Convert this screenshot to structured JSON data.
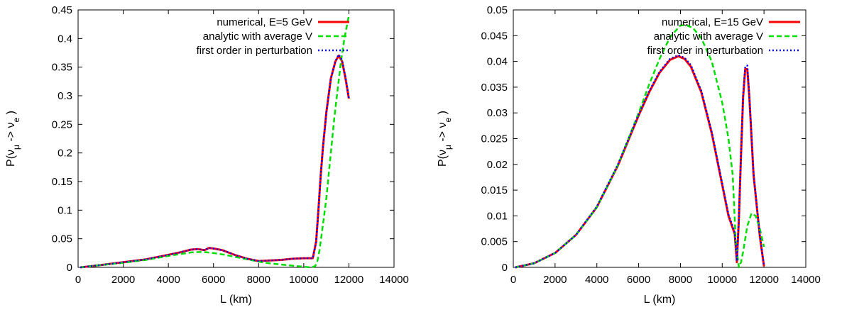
{
  "chart_data": [
    {
      "type": "line",
      "xlabel": "L (km)",
      "ylabel": "P(ν_μ -> ν_e )",
      "xlim": [
        0,
        14000
      ],
      "ylim": [
        0,
        0.45
      ],
      "xticks": [
        "0",
        "2000",
        "4000",
        "6000",
        "8000",
        "10000",
        "12000",
        "14000"
      ],
      "yticks": [
        "0",
        "0.05",
        "0.1",
        "0.15",
        "0.2",
        "0.25",
        "0.3",
        "0.35",
        "0.4",
        "0.45"
      ],
      "legend_position": "top-right",
      "grid": false,
      "series": [
        {
          "name": "numerical, E=5 GeV",
          "color": "#ff0000",
          "style": "solid",
          "x": [
            100,
            1000,
            2000,
            3000,
            4000,
            4500,
            5000,
            5300,
            5600,
            5800,
            6000,
            6400,
            7000,
            7500,
            8000,
            8500,
            9000,
            9500,
            10000,
            10400,
            10550,
            10650,
            10750,
            10850,
            11000,
            11200,
            11400,
            11550,
            11700,
            11850,
            12000
          ],
          "values": [
            0.0,
            0.004,
            0.009,
            0.014,
            0.022,
            0.026,
            0.031,
            0.032,
            0.03,
            0.034,
            0.033,
            0.03,
            0.021,
            0.015,
            0.011,
            0.012,
            0.013,
            0.015,
            0.016,
            0.016,
            0.045,
            0.1,
            0.16,
            0.21,
            0.27,
            0.33,
            0.36,
            0.37,
            0.36,
            0.33,
            0.295
          ]
        },
        {
          "name": "analytic with average V",
          "color": "#00dd00",
          "style": "dashed",
          "x": [
            100,
            1000,
            2000,
            3000,
            4000,
            4500,
            5000,
            5500,
            6000,
            6500,
            7000,
            7500,
            8000,
            8500,
            9000,
            9500,
            10000,
            10300,
            10500,
            10600,
            10700,
            10800,
            10900,
            11000,
            11100,
            11200,
            11350,
            11500,
            11650,
            11800,
            11950,
            12000
          ],
          "values": [
            0.0,
            0.004,
            0.008,
            0.013,
            0.02,
            0.023,
            0.026,
            0.027,
            0.025,
            0.022,
            0.018,
            0.014,
            0.01,
            0.007,
            0.005,
            0.003,
            0.001,
            0.0,
            0.002,
            0.01,
            0.03,
            0.06,
            0.09,
            0.12,
            0.16,
            0.2,
            0.26,
            0.31,
            0.36,
            0.4,
            0.43,
            0.44
          ]
        },
        {
          "name": "first order in perturbation",
          "color": "#0000ff",
          "style": "dotted",
          "x": [
            100,
            1000,
            2000,
            3000,
            4000,
            4500,
            5000,
            5300,
            5600,
            5800,
            6000,
            6400,
            7000,
            7500,
            8000,
            8500,
            9000,
            9500,
            10000,
            10400,
            10550,
            10650,
            10750,
            10850,
            11000,
            11200,
            11400,
            11550,
            11700,
            11850,
            12000
          ],
          "values": [
            0.0,
            0.004,
            0.009,
            0.014,
            0.022,
            0.026,
            0.031,
            0.032,
            0.03,
            0.034,
            0.033,
            0.03,
            0.021,
            0.015,
            0.011,
            0.012,
            0.013,
            0.015,
            0.016,
            0.016,
            0.045,
            0.1,
            0.16,
            0.21,
            0.27,
            0.33,
            0.36,
            0.372,
            0.362,
            0.332,
            0.296
          ]
        }
      ]
    },
    {
      "type": "line",
      "xlabel": "L (km)",
      "ylabel": "P(ν_μ -> ν_e )",
      "xlim": [
        0,
        14000
      ],
      "ylim": [
        0,
        0.05
      ],
      "xticks": [
        "0",
        "2000",
        "4000",
        "6000",
        "8000",
        "10000",
        "12000",
        "14000"
      ],
      "yticks": [
        "0",
        "0.005",
        "0.01",
        "0.015",
        "0.02",
        "0.025",
        "0.03",
        "0.035",
        "0.04",
        "0.045",
        "0.05"
      ],
      "legend_position": "top-right",
      "grid": false,
      "series": [
        {
          "name": "numerical, E=15 GeV",
          "color": "#ff0000",
          "style": "solid",
          "x": [
            100,
            1000,
            2000,
            3000,
            4000,
            5000,
            6000,
            6500,
            7000,
            7500,
            7900,
            8200,
            8500,
            9000,
            9500,
            10000,
            10300,
            10600,
            10700,
            10800,
            10900,
            11000,
            11100,
            11200,
            11300,
            11500,
            11800,
            12000
          ],
          "values": [
            0.0,
            0.0008,
            0.0028,
            0.0063,
            0.0117,
            0.0197,
            0.0295,
            0.034,
            0.0378,
            0.0403,
            0.041,
            0.0405,
            0.039,
            0.034,
            0.026,
            0.016,
            0.01,
            0.0065,
            0.001,
            0.0095,
            0.022,
            0.033,
            0.0385,
            0.0385,
            0.033,
            0.018,
            0.006,
            0.0002
          ]
        },
        {
          "name": "analytic with average V",
          "color": "#00dd00",
          "style": "dashed",
          "x": [
            100,
            1000,
            2000,
            3000,
            4000,
            5000,
            6000,
            6500,
            7000,
            7500,
            8000,
            8300,
            8600,
            9000,
            9500,
            10000,
            10300,
            10500,
            10650,
            10800,
            10900,
            11000,
            11200,
            11400,
            11600,
            11800,
            12000
          ],
          "values": [
            0.0,
            0.0008,
            0.0028,
            0.0063,
            0.0117,
            0.0198,
            0.03,
            0.0355,
            0.0405,
            0.0447,
            0.047,
            0.047,
            0.0465,
            0.0445,
            0.04,
            0.032,
            0.025,
            0.018,
            0.005,
            0.0,
            0.001,
            0.003,
            0.008,
            0.0105,
            0.01,
            0.0075,
            0.004
          ]
        },
        {
          "name": "first order in perturbation",
          "color": "#0000ff",
          "style": "dotted",
          "x": [
            100,
            1000,
            2000,
            3000,
            4000,
            5000,
            6000,
            6500,
            7000,
            7500,
            7900,
            8200,
            8500,
            9000,
            9500,
            10000,
            10300,
            10600,
            10700,
            10800,
            10900,
            11000,
            11100,
            11200,
            11300,
            11500,
            11800,
            12000
          ],
          "values": [
            0.0,
            0.0008,
            0.0028,
            0.0063,
            0.0118,
            0.0199,
            0.0297,
            0.0342,
            0.038,
            0.0405,
            0.0412,
            0.0407,
            0.0393,
            0.0343,
            0.0263,
            0.0163,
            0.0103,
            0.0068,
            0.0012,
            0.0097,
            0.0223,
            0.0335,
            0.039,
            0.0392,
            0.0333,
            0.0182,
            0.0062,
            0.0003
          ]
        }
      ]
    }
  ]
}
